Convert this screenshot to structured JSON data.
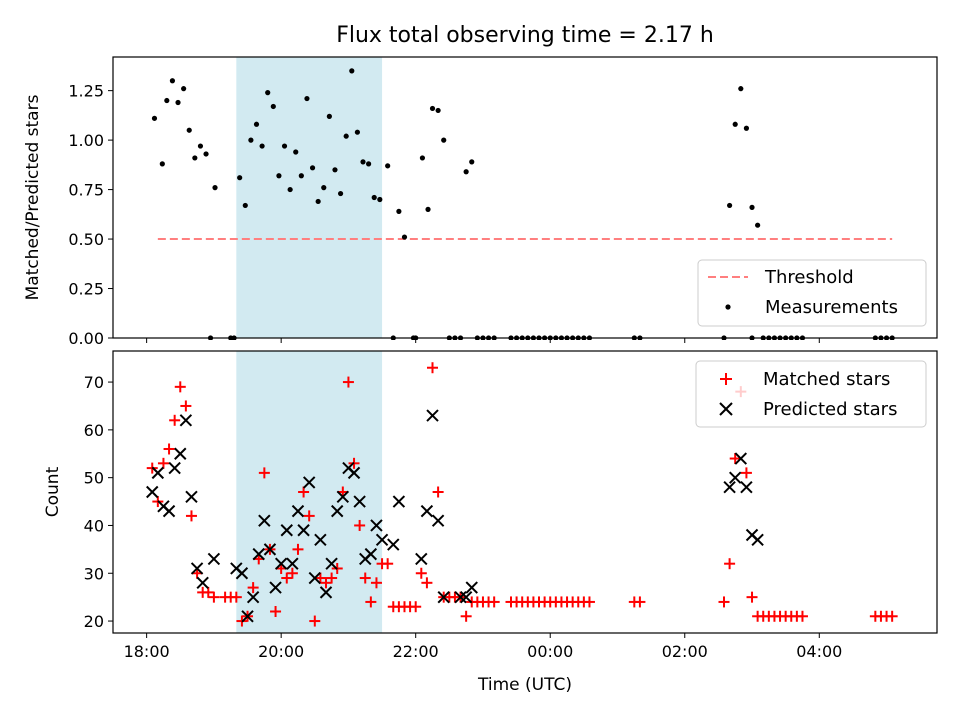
{
  "title": "Flux total observing time = 2.17 h",
  "colors": {
    "threshold": "#ff7f7f",
    "highlight": "#add8e6",
    "matched": "#ff0000",
    "predicted": "#000000",
    "measurement": "#000000"
  },
  "chart_data": [
    {
      "type": "scatter",
      "panel": "top",
      "ylabel": "Matched/Predicted stars",
      "xlim": [
        "17:30",
        "05:45"
      ],
      "ylim": [
        0,
        1.42
      ],
      "yticks": [
        "0.00",
        "0.25",
        "0.50",
        "0.75",
        "1.00",
        "1.25"
      ],
      "highlight_range": [
        "19:20",
        "21:30"
      ],
      "legend_position": "lower right",
      "legend": [
        {
          "label": "Threshold",
          "kind": "dashed-line"
        },
        {
          "label": "Measurements",
          "kind": "dot"
        }
      ],
      "threshold": {
        "name": "Threshold",
        "value": 0.5,
        "x_range": [
          "18:10",
          "05:05"
        ]
      },
      "series": [
        {
          "name": "Measurements",
          "points": [
            [
              "18:07",
              1.11
            ],
            [
              "18:14",
              0.88
            ],
            [
              "18:18",
              1.2
            ],
            [
              "18:23",
              1.3
            ],
            [
              "18:28",
              1.19
            ],
            [
              "18:33",
              1.26
            ],
            [
              "18:38",
              1.05
            ],
            [
              "18:43",
              0.91
            ],
            [
              "18:48",
              0.97
            ],
            [
              "18:53",
              0.93
            ],
            [
              "18:57",
              0.0
            ],
            [
              "19:01",
              0.76
            ],
            [
              "19:15",
              0.0
            ],
            [
              "19:18",
              0.0
            ],
            [
              "19:23",
              0.81
            ],
            [
              "19:28",
              0.67
            ],
            [
              "19:33",
              1.0
            ],
            [
              "19:38",
              1.08
            ],
            [
              "19:43",
              0.97
            ],
            [
              "19:48",
              1.24
            ],
            [
              "19:53",
              1.17
            ],
            [
              "19:58",
              0.82
            ],
            [
              "20:03",
              0.97
            ],
            [
              "20:08",
              0.75
            ],
            [
              "20:13",
              0.94
            ],
            [
              "20:18",
              0.82
            ],
            [
              "20:23",
              1.21
            ],
            [
              "20:28",
              0.86
            ],
            [
              "20:33",
              0.69
            ],
            [
              "20:38",
              0.76
            ],
            [
              "20:43",
              1.12
            ],
            [
              "20:48",
              0.85
            ],
            [
              "20:53",
              0.73
            ],
            [
              "20:58",
              1.02
            ],
            [
              "21:03",
              1.35
            ],
            [
              "21:08",
              1.04
            ],
            [
              "21:13",
              0.89
            ],
            [
              "21:18",
              0.88
            ],
            [
              "21:23",
              0.71
            ],
            [
              "21:28",
              0.7
            ],
            [
              "21:35",
              0.87
            ],
            [
              "21:40",
              0.0
            ],
            [
              "21:45",
              0.64
            ],
            [
              "21:50",
              0.51
            ],
            [
              "21:58",
              0.0
            ],
            [
              "22:00",
              0.0
            ],
            [
              "22:06",
              0.91
            ],
            [
              "22:11",
              0.65
            ],
            [
              "22:15",
              1.16
            ],
            [
              "22:20",
              1.15
            ],
            [
              "22:25",
              1.0
            ],
            [
              "22:30",
              0.0
            ],
            [
              "22:35",
              0.0
            ],
            [
              "22:40",
              0.0
            ],
            [
              "22:45",
              0.84
            ],
            [
              "22:50",
              0.89
            ],
            [
              "22:55",
              0.0
            ],
            [
              "23:00",
              0.0
            ],
            [
              "23:05",
              0.0
            ],
            [
              "23:10",
              0.0
            ],
            [
              "23:25",
              0.0
            ],
            [
              "23:30",
              0.0
            ],
            [
              "23:35",
              0.0
            ],
            [
              "23:40",
              0.0
            ],
            [
              "23:45",
              0.0
            ],
            [
              "23:50",
              0.0
            ],
            [
              "23:55",
              0.0
            ],
            [
              "00:00",
              0.0
            ],
            [
              "00:05",
              0.0
            ],
            [
              "00:10",
              0.0
            ],
            [
              "00:15",
              0.0
            ],
            [
              "00:20",
              0.0
            ],
            [
              "00:25",
              0.0
            ],
            [
              "00:30",
              0.0
            ],
            [
              "00:35",
              0.0
            ],
            [
              "01:15",
              0.0
            ],
            [
              "01:20",
              0.0
            ],
            [
              "02:35",
              0.0
            ],
            [
              "02:40",
              0.67
            ],
            [
              "02:45",
              1.08
            ],
            [
              "02:50",
              1.26
            ],
            [
              "02:55",
              1.06
            ],
            [
              "03:00",
              0.0
            ],
            [
              "03:00",
              0.66
            ],
            [
              "03:05",
              0.57
            ],
            [
              "03:10",
              0.0
            ],
            [
              "03:15",
              0.0
            ],
            [
              "03:20",
              0.0
            ],
            [
              "03:25",
              0.0
            ],
            [
              "03:30",
              0.0
            ],
            [
              "03:35",
              0.0
            ],
            [
              "03:40",
              0.0
            ],
            [
              "03:45",
              0.0
            ],
            [
              "04:50",
              0.0
            ],
            [
              "04:55",
              0.0
            ],
            [
              "05:00",
              0.0
            ],
            [
              "05:05",
              0.0
            ]
          ]
        }
      ]
    },
    {
      "type": "scatter",
      "panel": "bottom",
      "xlabel": "Time (UTC)",
      "ylabel": "Count",
      "xlim": [
        "17:30",
        "05:45"
      ],
      "ylim": [
        17.5,
        76.5
      ],
      "xticks": [
        "18:00",
        "20:00",
        "22:00",
        "00:00",
        "02:00",
        "04:00"
      ],
      "yticks": [
        "20",
        "30",
        "40",
        "50",
        "60",
        "70"
      ],
      "highlight_range": [
        "19:20",
        "21:30"
      ],
      "legend_position": "upper right",
      "legend": [
        {
          "label": "Matched stars",
          "kind": "plus"
        },
        {
          "label": "Predicted stars",
          "kind": "x"
        }
      ],
      "series": [
        {
          "name": "Matched stars",
          "marker": "+",
          "points": [
            [
              "18:05",
              52
            ],
            [
              "18:10",
              45
            ],
            [
              "18:15",
              53
            ],
            [
              "18:20",
              56
            ],
            [
              "18:25",
              62
            ],
            [
              "18:30",
              69
            ],
            [
              "18:35",
              65
            ],
            [
              "18:40",
              42
            ],
            [
              "18:45",
              30
            ],
            [
              "18:50",
              26
            ],
            [
              "18:55",
              26
            ],
            [
              "19:00",
              25
            ],
            [
              "19:10",
              25
            ],
            [
              "19:15",
              25
            ],
            [
              "19:20",
              25
            ],
            [
              "19:25",
              20
            ],
            [
              "19:30",
              21
            ],
            [
              "19:35",
              27
            ],
            [
              "19:40",
              33
            ],
            [
              "19:45",
              51
            ],
            [
              "19:50",
              35
            ],
            [
              "19:55",
              22
            ],
            [
              "20:00",
              31
            ],
            [
              "20:05",
              29
            ],
            [
              "20:10",
              30
            ],
            [
              "20:15",
              35
            ],
            [
              "20:20",
              47
            ],
            [
              "20:25",
              42
            ],
            [
              "20:30",
              20
            ],
            [
              "20:35",
              29
            ],
            [
              "20:40",
              28
            ],
            [
              "20:45",
              29
            ],
            [
              "20:50",
              31
            ],
            [
              "20:55",
              47
            ],
            [
              "21:00",
              70
            ],
            [
              "21:05",
              53
            ],
            [
              "21:10",
              40
            ],
            [
              "21:15",
              29
            ],
            [
              "21:20",
              24
            ],
            [
              "21:25",
              28
            ],
            [
              "21:30",
              32
            ],
            [
              "21:35",
              32
            ],
            [
              "21:40",
              23
            ],
            [
              "21:45",
              23
            ],
            [
              "21:50",
              23
            ],
            [
              "21:55",
              23
            ],
            [
              "22:00",
              23
            ],
            [
              "22:05",
              30
            ],
            [
              "22:10",
              28
            ],
            [
              "22:15",
              73
            ],
            [
              "22:20",
              47
            ],
            [
              "22:25",
              25
            ],
            [
              "22:30",
              25
            ],
            [
              "22:35",
              25
            ],
            [
              "22:40",
              25
            ],
            [
              "22:45",
              21
            ],
            [
              "22:50",
              24
            ],
            [
              "22:55",
              24
            ],
            [
              "23:00",
              24
            ],
            [
              "23:05",
              24
            ],
            [
              "23:10",
              24
            ],
            [
              "23:25",
              24
            ],
            [
              "23:30",
              24
            ],
            [
              "23:35",
              24
            ],
            [
              "23:40",
              24
            ],
            [
              "23:45",
              24
            ],
            [
              "23:50",
              24
            ],
            [
              "23:55",
              24
            ],
            [
              "00:00",
              24
            ],
            [
              "00:05",
              24
            ],
            [
              "00:10",
              24
            ],
            [
              "00:15",
              24
            ],
            [
              "00:20",
              24
            ],
            [
              "00:25",
              24
            ],
            [
              "00:30",
              24
            ],
            [
              "00:35",
              24
            ],
            [
              "01:15",
              24
            ],
            [
              "01:20",
              24
            ],
            [
              "02:35",
              24
            ],
            [
              "02:40",
              32
            ],
            [
              "02:45",
              54
            ],
            [
              "02:50",
              68
            ],
            [
              "02:55",
              51
            ],
            [
              "03:00",
              25
            ],
            [
              "03:05",
              21
            ],
            [
              "03:10",
              21
            ],
            [
              "03:15",
              21
            ],
            [
              "03:20",
              21
            ],
            [
              "03:25",
              21
            ],
            [
              "03:30",
              21
            ],
            [
              "03:35",
              21
            ],
            [
              "03:40",
              21
            ],
            [
              "03:45",
              21
            ],
            [
              "04:50",
              21
            ],
            [
              "04:55",
              21
            ],
            [
              "05:00",
              21
            ],
            [
              "05:05",
              21
            ]
          ]
        },
        {
          "name": "Predicted stars",
          "marker": "x",
          "points": [
            [
              "18:05",
              47
            ],
            [
              "18:10",
              51
            ],
            [
              "18:15",
              44
            ],
            [
              "18:20",
              43
            ],
            [
              "18:25",
              52
            ],
            [
              "18:30",
              55
            ],
            [
              "18:35",
              62
            ],
            [
              "18:40",
              46
            ],
            [
              "18:45",
              31
            ],
            [
              "18:50",
              28
            ],
            [
              "19:00",
              33
            ],
            [
              "19:20",
              31
            ],
            [
              "19:25",
              30
            ],
            [
              "19:30",
              21
            ],
            [
              "19:35",
              25
            ],
            [
              "19:40",
              34
            ],
            [
              "19:45",
              41
            ],
            [
              "19:50",
              35
            ],
            [
              "19:55",
              27
            ],
            [
              "20:00",
              32
            ],
            [
              "20:05",
              39
            ],
            [
              "20:10",
              32
            ],
            [
              "20:15",
              43
            ],
            [
              "20:20",
              39
            ],
            [
              "20:25",
              49
            ],
            [
              "20:30",
              29
            ],
            [
              "20:35",
              37
            ],
            [
              "20:40",
              26
            ],
            [
              "20:45",
              32
            ],
            [
              "20:50",
              43
            ],
            [
              "20:55",
              46
            ],
            [
              "21:00",
              52
            ],
            [
              "21:05",
              51
            ],
            [
              "21:10",
              45
            ],
            [
              "21:15",
              33
            ],
            [
              "21:20",
              34
            ],
            [
              "21:25",
              40
            ],
            [
              "21:30",
              37
            ],
            [
              "21:40",
              36
            ],
            [
              "21:45",
              45
            ],
            [
              "22:05",
              33
            ],
            [
              "22:10",
              43
            ],
            [
              "22:15",
              63
            ],
            [
              "22:20",
              41
            ],
            [
              "22:25",
              25
            ],
            [
              "22:40",
              25
            ],
            [
              "22:45",
              25
            ],
            [
              "22:50",
              27
            ],
            [
              "02:40",
              48
            ],
            [
              "02:45",
              50
            ],
            [
              "02:50",
              54
            ],
            [
              "02:55",
              48
            ],
            [
              "03:00",
              38
            ],
            [
              "03:05",
              37
            ]
          ]
        }
      ]
    }
  ]
}
